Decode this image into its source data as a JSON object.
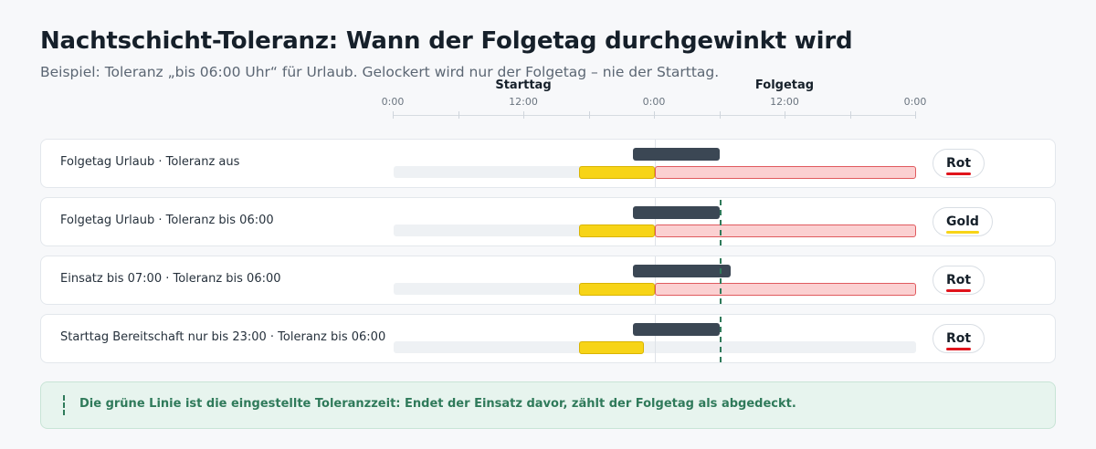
{
  "header": {
    "title": "Nachtschicht-Toleranz: Wann der Folgetag durchgewinkt wird",
    "subtitle": "Beispiel: Toleranz „bis 06:00 Uhr“ für Urlaub. Gelockert wird nur der Folgetag – nie der Starttag."
  },
  "axis": {
    "days": [
      "Starttag",
      "Folgetag"
    ],
    "tick_labels": [
      "0:00",
      "12:00",
      "0:00",
      "12:00",
      "0:00"
    ],
    "tick_hours": [
      0,
      6,
      12,
      18,
      24,
      30,
      36,
      42,
      48
    ],
    "range_hours": [
      0,
      48
    ]
  },
  "colors": {
    "starttag": "#f7d417",
    "folgetag": "#fbd0d1",
    "einsatz": "#3b4754",
    "toleranz": "#2f7a5a",
    "rot": "#e0141c",
    "gold": "#f7d417"
  },
  "rows": [
    {
      "label": "Folgetag Urlaub · Toleranz aus",
      "starttag_block": [
        17,
        24
      ],
      "folgetag_block": [
        24,
        48
      ],
      "einsatz": [
        22,
        30
      ],
      "toleranz": null,
      "result": "Rot",
      "result_color": "#e0141c"
    },
    {
      "label": "Folgetag Urlaub · Toleranz bis 06:00",
      "starttag_block": [
        17,
        24
      ],
      "folgetag_block": [
        24,
        48
      ],
      "einsatz": [
        22,
        30
      ],
      "toleranz": 30,
      "result": "Gold",
      "result_color": "#f7d417"
    },
    {
      "label": "Einsatz bis 07:00 · Toleranz bis 06:00",
      "starttag_block": [
        17,
        24
      ],
      "folgetag_block": [
        24,
        48
      ],
      "einsatz": [
        22,
        31
      ],
      "toleranz": 30,
      "result": "Rot",
      "result_color": "#e0141c"
    },
    {
      "label": "Starttag Bereitschaft nur bis 23:00 · Toleranz bis 06:00",
      "starttag_block": [
        17,
        23
      ],
      "folgetag_block": null,
      "einsatz": [
        22,
        30
      ],
      "toleranz": 30,
      "result": "Rot",
      "result_color": "#e0141c"
    }
  ],
  "note": {
    "text": "Die grüne Linie ist die eingestellte Toleranzzeit: Endet der Einsatz davor, zählt der Folgetag als abgedeckt."
  }
}
